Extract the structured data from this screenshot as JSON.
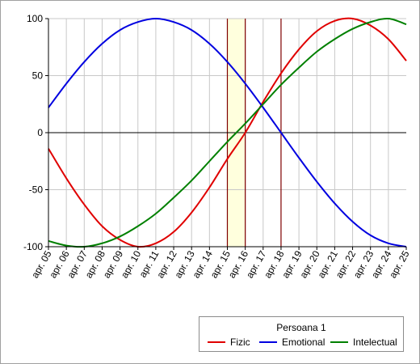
{
  "chart_data": {
    "type": "line",
    "title": "",
    "xlabel": "",
    "ylabel": "",
    "ylim": [
      -100,
      100
    ],
    "yticks": [
      "100",
      "50",
      "0",
      "-50",
      "-100"
    ],
    "y_tick_values": [
      100,
      50,
      0,
      -50,
      -100
    ],
    "categories": [
      "apr. 05",
      "apr. 06",
      "apr. 07",
      "apr. 08",
      "apr. 09",
      "apr. 10",
      "apr. 11",
      "apr. 12",
      "apr. 13",
      "apr. 14",
      "apr. 15",
      "apr. 16",
      "apr. 17",
      "apr. 18",
      "apr. 19",
      "apr. 20",
      "apr. 21",
      "apr. 22",
      "apr. 23",
      "apr. 24",
      "apr. 25"
    ],
    "grid": true,
    "highlight_band": {
      "from": "apr. 15",
      "to": "apr. 16",
      "color": "#ffffdd"
    },
    "marker_lines": [
      {
        "at": "apr. 15",
        "color": "#800000"
      },
      {
        "at": "apr. 16",
        "color": "#800000"
      },
      {
        "at": "apr. 18",
        "color": "#800000"
      }
    ],
    "legend": {
      "title": "Persoana 1",
      "placement": "bottom-right"
    },
    "series": [
      {
        "name": "Fizic",
        "color": "#e00000",
        "values": [
          -14,
          -40,
          -63,
          -82,
          -94,
          -100,
          -97,
          -87,
          -70,
          -48,
          -23,
          0,
          27,
          52,
          73,
          89,
          98,
          100,
          94,
          82,
          63
        ]
      },
      {
        "name": "Emotional",
        "color": "#0000e0",
        "values": [
          22,
          43,
          62,
          78,
          90,
          97,
          100,
          97,
          90,
          78,
          62,
          43,
          22,
          0,
          -22,
          -43,
          -62,
          -78,
          -90,
          -97,
          -100
        ]
      },
      {
        "name": "Intelectual",
        "color": "#008000",
        "values": [
          -95,
          -99,
          -100,
          -97,
          -91,
          -82,
          -71,
          -57,
          -42,
          -25,
          -8,
          8,
          25,
          42,
          57,
          71,
          82,
          91,
          97,
          100,
          95
        ]
      }
    ]
  }
}
